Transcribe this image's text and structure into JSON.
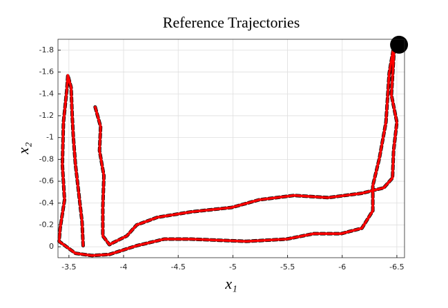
{
  "chart_data": {
    "type": "line",
    "title": "Reference Trajectories",
    "x_label": "x₁",
    "y_label": "x₂",
    "xlim": [
      -3.4,
      -6.57
    ],
    "ylim": [
      0.1,
      -1.9
    ],
    "xticks": [
      -3.5,
      -4,
      -4.5,
      -5,
      -5.5,
      -6,
      -6.5
    ],
    "yticks": [
      0,
      -0.2,
      -0.4,
      -0.6,
      -0.8,
      -1,
      -1.2,
      -1.4,
      -1.6,
      -1.8
    ],
    "grid": true,
    "series": [
      {
        "color": "#000000",
        "dashed": true,
        "x": [
          -3.74,
          -3.79,
          -3.78,
          -3.82,
          -3.81,
          -3.81,
          -3.87,
          -4.03,
          -4.12,
          -4.31,
          -4.62,
          -4.99,
          -5.24,
          -5.56,
          -5.87,
          -6.18,
          -6.38,
          -6.46,
          -6.47,
          -6.5,
          -6.45,
          -6.48,
          -6.43,
          -6.4,
          -6.34,
          -6.28,
          -6.28,
          -6.18,
          -5.99,
          -5.74,
          -5.49,
          -5.12,
          -4.62,
          -4.37,
          -4.12,
          -3.87,
          -3.71,
          -3.56,
          -3.41,
          -3.42,
          -3.46,
          -3.44,
          -3.45,
          -3.48,
          -3.49,
          -3.52,
          -3.53,
          -3.54,
          -3.56,
          -3.59,
          -3.62,
          -3.63
        ],
        "values": [
          -1.28,
          -1.1,
          -0.88,
          -0.65,
          -0.36,
          -0.1,
          -0.02,
          -0.1,
          -0.2,
          -0.27,
          -0.32,
          -0.36,
          -0.43,
          -0.47,
          -0.45,
          -0.49,
          -0.54,
          -0.63,
          -0.88,
          -1.14,
          -1.39,
          -1.88,
          -1.59,
          -1.14,
          -0.81,
          -0.56,
          -0.33,
          -0.17,
          -0.12,
          -0.12,
          -0.07,
          -0.05,
          -0.07,
          -0.07,
          -0.01,
          0.07,
          0.08,
          0.06,
          -0.05,
          -0.17,
          -0.43,
          -0.75,
          -1.14,
          -1.43,
          -1.57,
          -1.46,
          -1.2,
          -1.01,
          -0.75,
          -0.49,
          -0.23,
          -0.01
        ]
      },
      {
        "color": "#ff0000",
        "dashed": false,
        "x": [
          -3.74,
          -3.79,
          -3.78,
          -3.82,
          -3.81,
          -3.81,
          -3.87,
          -4.03,
          -4.12,
          -4.31,
          -4.62,
          -4.99,
          -5.24,
          -5.56,
          -5.87,
          -6.18,
          -6.38,
          -6.46,
          -6.47,
          -6.5,
          -6.45,
          -6.48,
          -6.43,
          -6.4,
          -6.34,
          -6.28,
          -6.28,
          -6.18,
          -5.99,
          -5.74,
          -5.49,
          -5.12,
          -4.62,
          -4.37,
          -4.12,
          -3.87,
          -3.71,
          -3.56,
          -3.41,
          -3.42,
          -3.46,
          -3.44,
          -3.45,
          -3.48,
          -3.49,
          -3.52,
          -3.53,
          -3.54,
          -3.56,
          -3.59,
          -3.62,
          -3.63
        ],
        "values": [
          -1.28,
          -1.1,
          -0.88,
          -0.65,
          -0.36,
          -0.1,
          -0.02,
          -0.1,
          -0.2,
          -0.27,
          -0.32,
          -0.36,
          -0.43,
          -0.47,
          -0.45,
          -0.49,
          -0.54,
          -0.63,
          -0.88,
          -1.14,
          -1.39,
          -1.88,
          -1.59,
          -1.14,
          -0.81,
          -0.56,
          -0.33,
          -0.17,
          -0.12,
          -0.12,
          -0.07,
          -0.05,
          -0.07,
          -0.07,
          -0.01,
          0.07,
          0.08,
          0.06,
          -0.05,
          -0.17,
          -0.43,
          -0.75,
          -1.14,
          -1.43,
          -1.57,
          -1.46,
          -1.2,
          -1.01,
          -0.75,
          -0.49,
          -0.23,
          -0.01
        ]
      }
    ],
    "points": [
      {
        "x": -6.52,
        "y": -1.85,
        "color": "#000000"
      }
    ]
  }
}
